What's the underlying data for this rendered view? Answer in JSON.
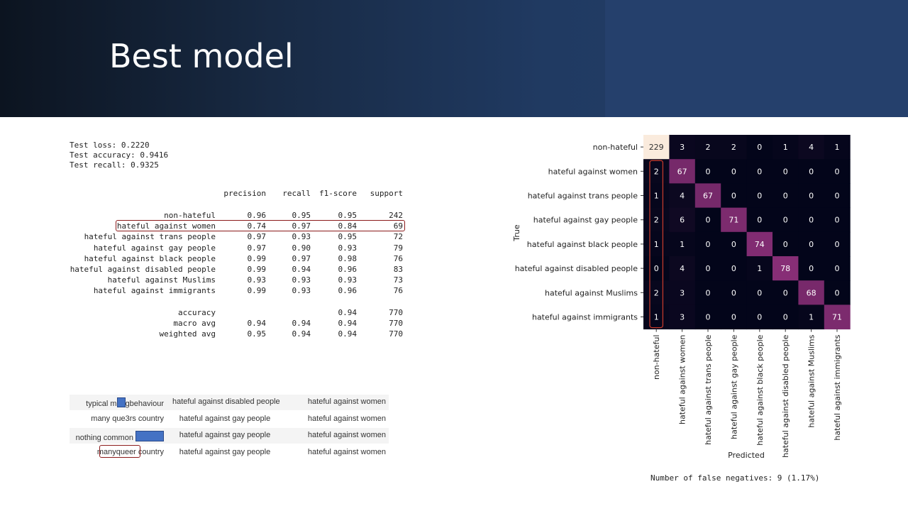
{
  "slide": {
    "title": "Best model"
  },
  "metrics": {
    "test_loss": "Test loss: 0.2220",
    "test_accuracy": "Test accuracy: 0.9416",
    "test_recall": "Test recall: 0.9325"
  },
  "report": {
    "headers": [
      "precision",
      "recall",
      "f1-score",
      "support"
    ],
    "rows": [
      {
        "label": "non-hateful",
        "precision": "0.96",
        "recall": "0.95",
        "f1": "0.95",
        "support": "242"
      },
      {
        "label": "hateful against women",
        "precision": "0.74",
        "recall": "0.97",
        "f1": "0.84",
        "support": "69"
      },
      {
        "label": "hateful against trans people",
        "precision": "0.97",
        "recall": "0.93",
        "f1": "0.95",
        "support": "72"
      },
      {
        "label": "hateful against gay people",
        "precision": "0.97",
        "recall": "0.90",
        "f1": "0.93",
        "support": "79"
      },
      {
        "label": "hateful against black people",
        "precision": "0.99",
        "recall": "0.97",
        "f1": "0.98",
        "support": "76"
      },
      {
        "label": "hateful against disabled people",
        "precision": "0.99",
        "recall": "0.94",
        "f1": "0.96",
        "support": "83"
      },
      {
        "label": "hateful against Muslims",
        "precision": "0.93",
        "recall": "0.93",
        "f1": "0.93",
        "support": "73"
      },
      {
        "label": "hateful against immigrants",
        "precision": "0.99",
        "recall": "0.93",
        "f1": "0.96",
        "support": "76"
      }
    ],
    "summary": [
      {
        "label": "accuracy",
        "precision": "",
        "recall": "",
        "f1": "0.94",
        "support": "770"
      },
      {
        "label": "macro avg",
        "precision": "0.94",
        "recall": "0.94",
        "f1": "0.94",
        "support": "770"
      },
      {
        "label": "weighted avg",
        "precision": "0.95",
        "recall": "0.94",
        "f1": "0.94",
        "support": "770"
      }
    ]
  },
  "examples": [
    {
      "text_before": "typical m",
      "text_after": "gbehaviour",
      "true": "hateful against disabled people",
      "pred": "hateful against women"
    },
    {
      "text_before": "many que3rs country",
      "text_after": "",
      "true": "hateful against gay people",
      "pred": "hateful against women"
    },
    {
      "text_before": "nothing common ",
      "text_after": "",
      "true": "hateful against gay people",
      "pred": "hateful against women"
    },
    {
      "text_before": "manyqueer",
      "text_after": " country",
      "true": "hateful against gay people",
      "pred": "hateful against women"
    }
  ],
  "chart_data": {
    "type": "heatmap",
    "row_labels": [
      "non-hateful",
      "hateful against women",
      "hateful against trans people",
      "hateful against gay people",
      "hateful against black people",
      "hateful against disabled people",
      "hateful against Muslims",
      "hateful against immigrants"
    ],
    "col_labels": [
      "non-hateful",
      "hateful against women",
      "hateful against trans people",
      "hateful against gay people",
      "hateful against black people",
      "hateful against disabled people",
      "hateful against Muslims",
      "hateful against immigrants"
    ],
    "values": [
      [
        229,
        3,
        2,
        2,
        0,
        1,
        4,
        1
      ],
      [
        2,
        67,
        0,
        0,
        0,
        0,
        0,
        0
      ],
      [
        1,
        4,
        67,
        0,
        0,
        0,
        0,
        0
      ],
      [
        2,
        6,
        0,
        71,
        0,
        0,
        0,
        0
      ],
      [
        1,
        1,
        0,
        0,
        74,
        0,
        0,
        0
      ],
      [
        0,
        4,
        0,
        0,
        1,
        78,
        0,
        0
      ],
      [
        2,
        3,
        0,
        0,
        0,
        0,
        68,
        0
      ],
      [
        1,
        3,
        0,
        0,
        0,
        0,
        1,
        71
      ]
    ],
    "xlabel": "Predicted",
    "ylabel": "True",
    "colors": {
      "low": "#03051a",
      "mid": "#6e1f6b",
      "diag": "#8a2f78",
      "high": "#faebdd"
    }
  },
  "footnote": "Number of false negatives: 9 (1.17%)"
}
